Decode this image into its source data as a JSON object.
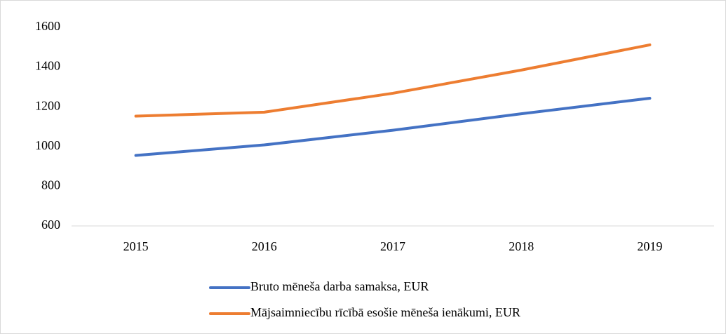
{
  "chart_data": {
    "type": "line",
    "categories": [
      "2015",
      "2016",
      "2017",
      "2018",
      "2019"
    ],
    "series": [
      {
        "name": "Bruto mēneša darba samaksa, EUR",
        "color": "#4472c4",
        "values": [
          955,
          1008,
          1082,
          1165,
          1243
        ]
      },
      {
        "name": "Mājsaimniecību rīcībā esošie mēneša ienākumi, EUR",
        "color": "#ed7d31",
        "values": [
          1153,
          1173,
          1268,
          1385,
          1512
        ]
      }
    ],
    "ylim": [
      600,
      1600
    ],
    "yticks": [
      600,
      800,
      1000,
      1200,
      1400,
      1600
    ],
    "grid": false,
    "legend": "bottom"
  }
}
